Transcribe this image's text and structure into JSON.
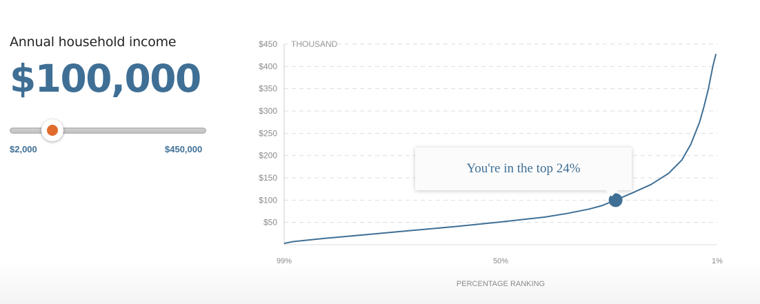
{
  "controls": {
    "label": "Annual household income",
    "value": "$100,000",
    "slider": {
      "min_label": "$2,000",
      "max_label": "$450,000",
      "min": 2000,
      "max": 450000,
      "value": 100000,
      "thumb_color": "#e06b2c"
    }
  },
  "tooltip": {
    "text": "You're in the top 24%"
  },
  "accent_color": "#3f6f95",
  "chart_data": {
    "type": "line",
    "y_unit_label": "THOUSAND",
    "xlabel": "PERCENTAGE RANKING",
    "ylabel": "",
    "x_ticks": [
      "99%",
      "50%",
      "1%"
    ],
    "y_ticks": [
      "$50",
      "$100",
      "$150",
      "$200",
      "$250",
      "$300",
      "$350",
      "$400",
      "$450"
    ],
    "y_tick_values": [
      50,
      100,
      150,
      200,
      250,
      300,
      350,
      400,
      450
    ],
    "ylim": [
      0,
      450
    ],
    "xlim": [
      99,
      1
    ],
    "grid": true,
    "series": [
      {
        "color": "#3f6f95",
        "x": [
          99,
          97,
          90,
          80,
          70,
          60,
          50,
          40,
          35,
          30,
          27,
          24,
          20,
          16,
          12,
          9,
          7,
          5,
          4,
          3,
          2,
          1.3
        ],
        "y": [
          3,
          7,
          14,
          23,
          32,
          41,
          51,
          62,
          70,
          80,
          88,
          100,
          117,
          135,
          160,
          190,
          225,
          275,
          310,
          350,
          400,
          428
        ]
      }
    ],
    "marker": {
      "x": 24,
      "y": 100
    }
  }
}
